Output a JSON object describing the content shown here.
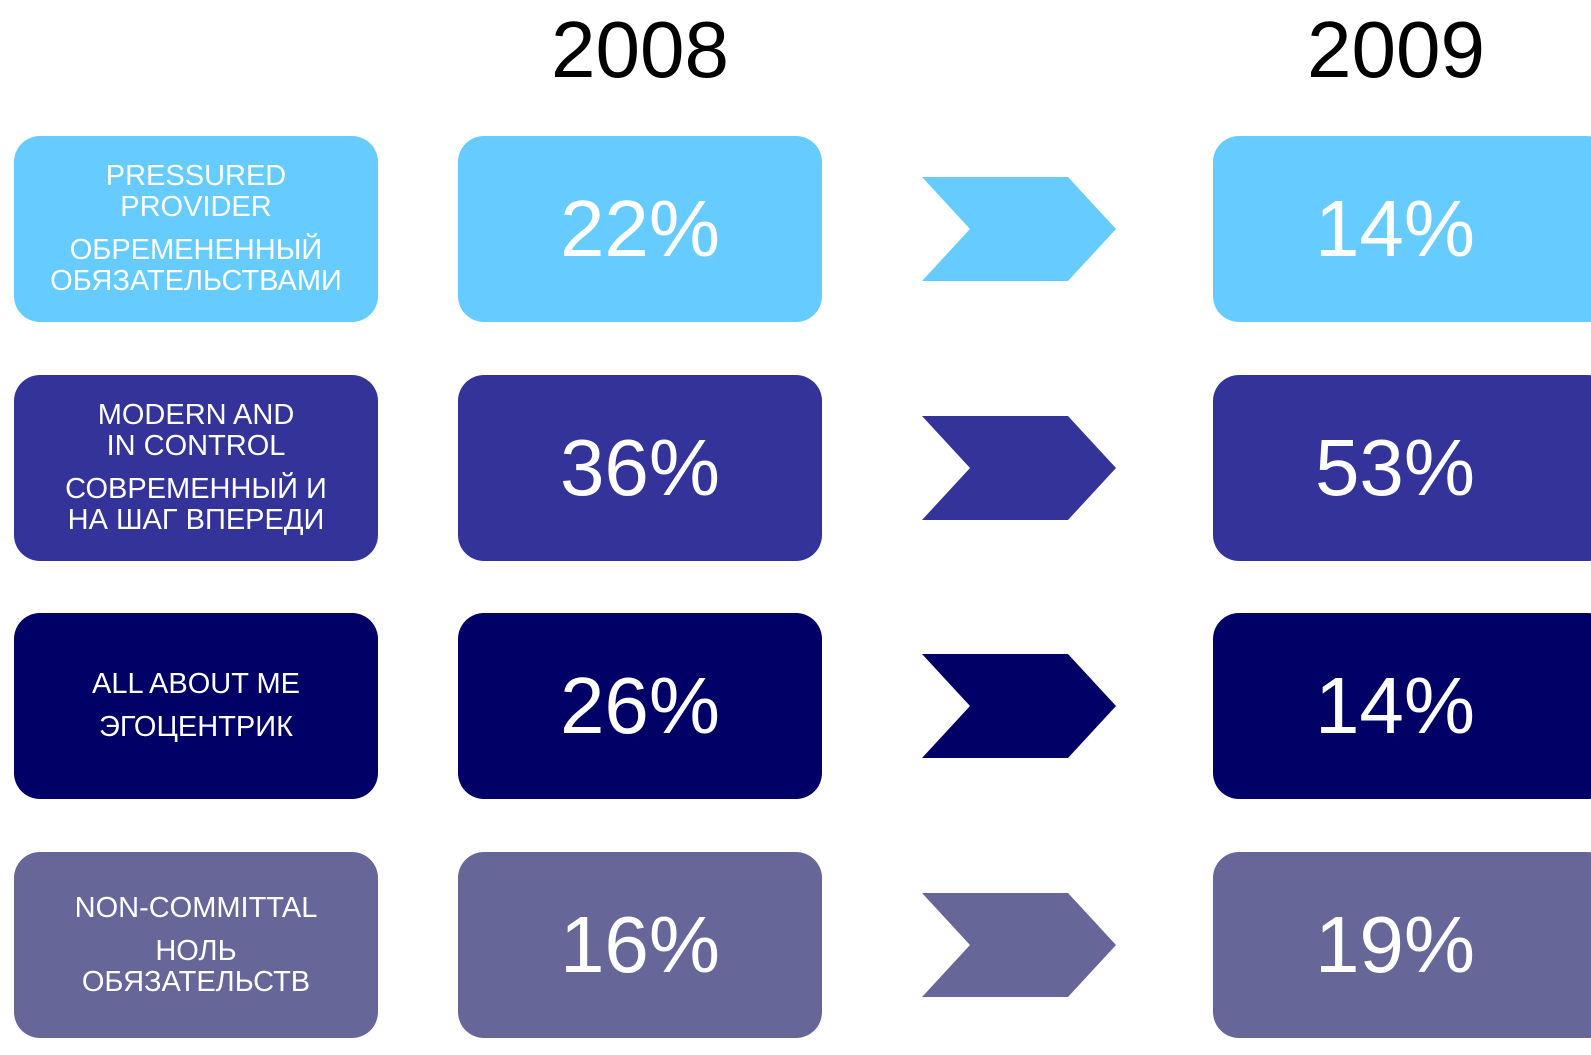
{
  "headers": [
    "2008",
    "2009"
  ],
  "rows": [
    {
      "english": [
        "PRESSURED",
        "PROVIDER"
      ],
      "russian": [
        "ОБРЕМЕНЕННЫЙ",
        "ОБЯЗАТЕЛЬСТВАМИ"
      ],
      "color": "#66ccff",
      "value_2008": "22%",
      "value_2009": "14%"
    },
    {
      "english": [
        "MODERN AND",
        "IN CONTROL"
      ],
      "russian": [
        "СОВРЕМЕННЫЙ И",
        "НА ШАГ ВПЕРЕДИ"
      ],
      "color": "#333399",
      "value_2008": "36%",
      "value_2009": "53%"
    },
    {
      "english": [
        "ALL ABOUT ME"
      ],
      "russian": [
        "ЭГОЦЕНТРИК"
      ],
      "color": "#000066",
      "value_2008": "26%",
      "value_2009": "14%"
    },
    {
      "english": [
        "NON-COMMITTAL"
      ],
      "russian": [
        "НОЛЬ",
        "ОБЯЗАТЕЛЬСТВ"
      ],
      "color": "#666699",
      "value_2008": "16%",
      "value_2009": "19%"
    }
  ]
}
